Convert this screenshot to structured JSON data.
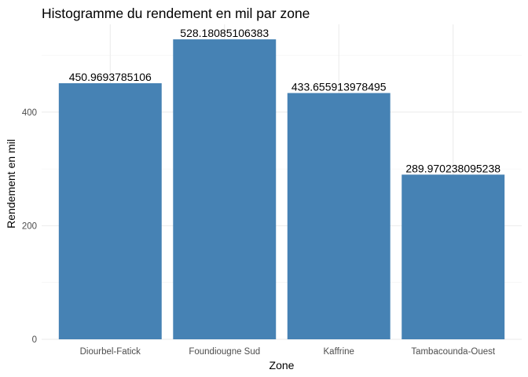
{
  "chart_data": {
    "type": "bar",
    "title": "Histogramme du rendement en mil par zone",
    "xlabel": "Zone",
    "ylabel": "Rendement en mil",
    "categories": [
      "Diourbel-Fatick",
      "Foundiougne Sud",
      "Kaffrine",
      "Tambacounda-Ouest"
    ],
    "values": [
      450.9693785106,
      528.18085106383,
      433.655913978495,
      289.970238095238
    ],
    "data_labels": [
      "450.9693785106",
      "528.18085106383",
      "433.655913978495",
      "289.970238095238"
    ],
    "ylim": [
      0,
      554.5899
    ],
    "yticks": [
      0,
      200,
      400
    ],
    "ytick_labels": [
      "0",
      "200",
      "400"
    ],
    "grid": true,
    "bar_color": "#4682B4",
    "legend": "none"
  }
}
